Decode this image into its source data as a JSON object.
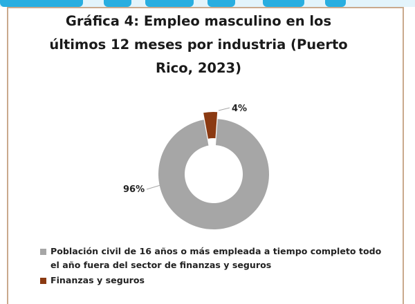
{
  "chart_data": {
    "type": "pie",
    "title": "Gráfica 4: Empleo masculino en los últimos 12 meses por industria (Puerto Rico, 2023)",
    "categories": [
      "Población civil de 16 años o más empleada a tiempo completo todo el año fuera del sector de finanzas y seguros",
      "Finanzas y seguros"
    ],
    "values": [
      96,
      4
    ],
    "data_labels": [
      "96%",
      "4%"
    ],
    "colors": [
      "#a6a6a6",
      "#8b3a12"
    ],
    "donut": true,
    "exploded_slice": "Finanzas y seguros",
    "legend_position": "bottom"
  }
}
